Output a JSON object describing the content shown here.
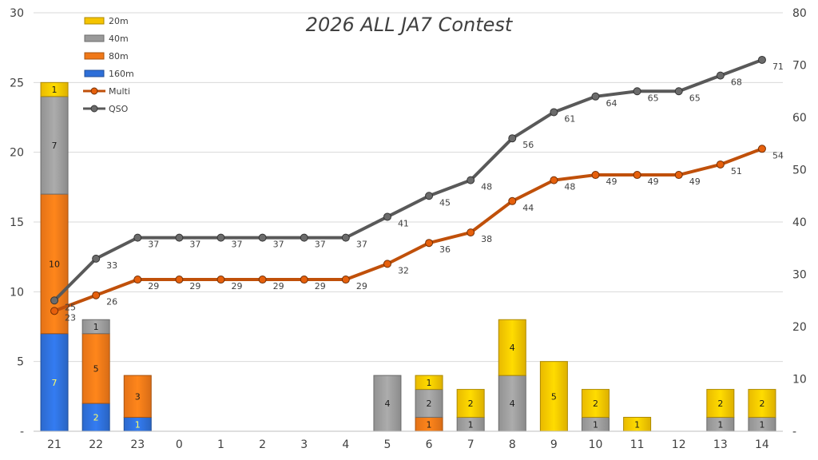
{
  "chart_data": {
    "type": "bar",
    "title": "2026 ALL JA7 Contest",
    "categories": [
      "21",
      "22",
      "23",
      "0",
      "1",
      "2",
      "3",
      "4",
      "5",
      "6",
      "7",
      "8",
      "9",
      "10",
      "11",
      "12",
      "13",
      "14"
    ],
    "stacked": true,
    "ylim_left": [
      0,
      30
    ],
    "yticks_left": [
      "-",
      "5",
      "10",
      "15",
      "20",
      "25",
      "30"
    ],
    "ylim_right": [
      0,
      80
    ],
    "yticks_right": [
      "-",
      "10",
      "20",
      "30",
      "40",
      "50",
      "60",
      "70",
      "80"
    ],
    "grid": true,
    "legend_position": "top-left",
    "bar_series": [
      {
        "name": "160m",
        "color": "#2E6FD8",
        "label_color": "#FFFF66",
        "values": [
          7,
          2,
          1,
          0,
          0,
          0,
          0,
          0,
          0,
          0,
          0,
          0,
          0,
          0,
          0,
          0,
          0,
          0
        ]
      },
      {
        "name": "80m",
        "color": "#F07818",
        "label_color": "#1A1A1A",
        "values": [
          10,
          5,
          3,
          0,
          0,
          0,
          0,
          0,
          0,
          1,
          0,
          0,
          0,
          0,
          0,
          0,
          0,
          0
        ]
      },
      {
        "name": "40m",
        "color": "#9A9A9A",
        "label_color": "#1A1A1A",
        "values": [
          7,
          1,
          0,
          0,
          0,
          0,
          0,
          0,
          4,
          2,
          1,
          4,
          0,
          1,
          0,
          0,
          1,
          1
        ]
      },
      {
        "name": "20m",
        "color": "#F5C400",
        "label_color": "#1A1A1A",
        "values": [
          1,
          0,
          0,
          0,
          0,
          0,
          0,
          0,
          0,
          1,
          2,
          4,
          5,
          2,
          1,
          0,
          2,
          2
        ]
      }
    ],
    "line_series": [
      {
        "name": "Multi",
        "color": "#C0500A",
        "axis": "right",
        "values": [
          23,
          26,
          29,
          29,
          29,
          29,
          29,
          29,
          32,
          36,
          38,
          44,
          48,
          49,
          49,
          49,
          51,
          54
        ]
      },
      {
        "name": "QSO",
        "color": "#595959",
        "axis": "right",
        "values": [
          25,
          33,
          37,
          37,
          37,
          37,
          37,
          37,
          41,
          45,
          48,
          56,
          61,
          64,
          65,
          65,
          68,
          71
        ]
      }
    ]
  }
}
